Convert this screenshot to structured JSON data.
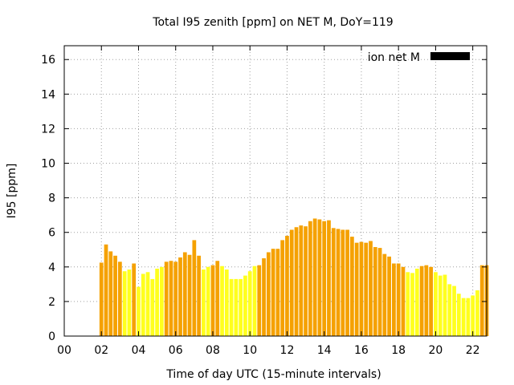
{
  "chart_data": {
    "type": "bar",
    "title": "Total I95 zenith [ppm] on NET M, DoY=119",
    "xlabel": "Time of day UTC (15-minute intervals)",
    "ylabel": "I95 [ppm]",
    "xlim": [
      0,
      22.75
    ],
    "ylim": [
      0,
      16.8
    ],
    "xticks": [
      0,
      2,
      4,
      6,
      8,
      10,
      12,
      14,
      16,
      18,
      20,
      22
    ],
    "xtick_labels": [
      "00",
      "02",
      "04",
      "06",
      "08",
      "10",
      "12",
      "14",
      "16",
      "18",
      "20",
      "22"
    ],
    "yticks": [
      0,
      2,
      4,
      6,
      8,
      10,
      12,
      14,
      16
    ],
    "grid": true,
    "legend": {
      "label": "ion net M",
      "position": "top-right",
      "color": "#000000"
    },
    "colors": {
      "orange": "#f5a100",
      "yellow": "#ffff1e"
    },
    "interval_hours": 0.25,
    "x": [
      2,
      2.25,
      2.5,
      2.75,
      3,
      3.25,
      3.5,
      3.75,
      4,
      4.25,
      4.5,
      4.75,
      5,
      5.25,
      5.5,
      5.75,
      6,
      6.25,
      6.5,
      6.75,
      7,
      7.25,
      7.5,
      7.75,
      8,
      8.25,
      8.5,
      8.75,
      9,
      9.25,
      9.5,
      9.75,
      10,
      10.25,
      10.5,
      10.75,
      11,
      11.25,
      11.5,
      11.75,
      12,
      12.25,
      12.5,
      12.75,
      13,
      13.25,
      13.5,
      13.75,
      14,
      14.25,
      14.5,
      14.75,
      15,
      15.25,
      15.5,
      15.75,
      16,
      16.25,
      16.5,
      16.75,
      17,
      17.25,
      17.5,
      17.75,
      18,
      18.25,
      18.5,
      18.75,
      19,
      19.25,
      19.5,
      19.75,
      20,
      20.25,
      20.5,
      20.75,
      21,
      21.25,
      21.5,
      21.75,
      22,
      22.25,
      22.5,
      22.75
    ],
    "values": [
      4.25,
      5.3,
      4.9,
      4.65,
      4.3,
      3.75,
      3.85,
      4.2,
      2.85,
      3.6,
      3.7,
      3.3,
      3.9,
      4.0,
      4.3,
      4.35,
      4.3,
      4.55,
      4.85,
      4.7,
      5.55,
      4.65,
      3.85,
      4.0,
      4.1,
      4.35,
      4.05,
      3.85,
      3.3,
      3.3,
      3.3,
      3.5,
      3.75,
      4.05,
      4.1,
      4.5,
      4.85,
      5.05,
      5.05,
      5.55,
      5.8,
      6.15,
      6.3,
      6.4,
      6.35,
      6.65,
      6.8,
      6.75,
      6.65,
      6.7,
      6.25,
      6.2,
      6.15,
      6.15,
      5.75,
      5.4,
      5.45,
      5.4,
      5.5,
      5.15,
      5.1,
      4.75,
      4.6,
      4.2,
      4.2,
      4.0,
      3.7,
      3.65,
      3.9,
      4.05,
      4.1,
      4.0,
      3.7,
      3.5,
      3.55,
      3.0,
      2.9,
      2.45,
      2.2,
      2.2,
      2.35,
      2.65,
      4.1,
      4.1
    ],
    "bar_colors": [
      "orange",
      "orange",
      "orange",
      "orange",
      "orange",
      "yellow",
      "yellow",
      "orange",
      "yellow",
      "yellow",
      "yellow",
      "yellow",
      "yellow",
      "yellow",
      "orange",
      "orange",
      "orange",
      "orange",
      "orange",
      "orange",
      "orange",
      "orange",
      "yellow",
      "yellow",
      "orange",
      "orange",
      "yellow",
      "yellow",
      "yellow",
      "yellow",
      "yellow",
      "yellow",
      "yellow",
      "yellow",
      "orange",
      "orange",
      "orange",
      "orange",
      "orange",
      "orange",
      "orange",
      "orange",
      "orange",
      "orange",
      "orange",
      "orange",
      "orange",
      "orange",
      "orange",
      "orange",
      "orange",
      "orange",
      "orange",
      "orange",
      "orange",
      "orange",
      "orange",
      "orange",
      "orange",
      "orange",
      "orange",
      "orange",
      "orange",
      "orange",
      "orange",
      "orange",
      "yellow",
      "yellow",
      "yellow",
      "orange",
      "orange",
      "orange",
      "yellow",
      "yellow",
      "yellow",
      "yellow",
      "yellow",
      "yellow",
      "yellow",
      "yellow",
      "yellow",
      "yellow",
      "orange",
      "orange"
    ]
  }
}
